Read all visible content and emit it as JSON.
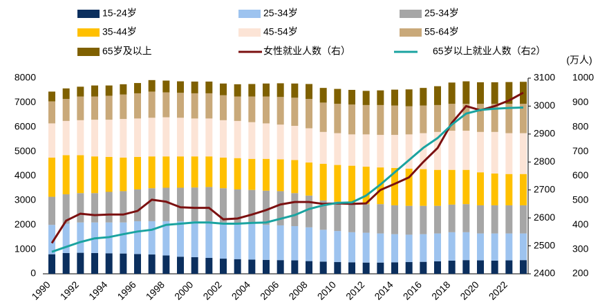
{
  "chart_data": {
    "type": "stacked-bar-line",
    "categories": [
      "1990",
      null,
      "1992",
      null,
      "1994",
      null,
      "1996",
      null,
      "1998",
      null,
      "2000",
      null,
      "2002",
      null,
      "2004",
      null,
      "2006",
      null,
      "2008",
      null,
      "2010",
      null,
      "2012",
      null,
      "2014",
      null,
      "2016",
      null,
      "2018",
      null,
      "2020",
      null,
      "2022",
      null
    ],
    "ylim": [
      0,
      8000
    ],
    "yticks": [
      0,
      1000,
      2000,
      3000,
      4000,
      5000,
      6000,
      7000,
      8000
    ],
    "y2lim": [
      2400,
      3100
    ],
    "y2ticks": [
      2400,
      2500,
      2600,
      2700,
      2800,
      2900,
      3000,
      3100
    ],
    "y3lim": [
      200,
      1000
    ],
    "y3ticks": [
      200,
      300,
      400,
      500,
      600,
      700,
      800,
      900,
      1000
    ],
    "y3label": "(万人)",
    "series": [
      {
        "name": "15-24岁",
        "color": "#0b2f5e",
        "values": [
          800,
          850,
          860,
          850,
          840,
          830,
          810,
          790,
          750,
          700,
          680,
          650,
          620,
          600,
          580,
          570,
          560,
          550,
          520,
          500,
          480,
          470,
          460,
          460,
          470,
          480,
          490,
          510,
          540,
          560,
          550,
          540,
          550,
          560
        ]
      },
      {
        "name": "25-34岁",
        "color": "#9dc3ef",
        "values": [
          1200,
          1200,
          1240,
          1250,
          1260,
          1270,
          1340,
          1360,
          1400,
          1450,
          1470,
          1500,
          1480,
          1450,
          1470,
          1430,
          1420,
          1400,
          1380,
          1300,
          1270,
          1230,
          1220,
          1190,
          1150,
          1120,
          1130,
          1140,
          1160,
          1140,
          1100,
          1110,
          1100,
          1090
        ]
      },
      {
        "name": "25-34岁",
        "color": "#a6a6a6",
        "values": [
          1150,
          1200,
          1200,
          1200,
          1250,
          1280,
          1300,
          1350,
          1370,
          1370,
          1380,
          1400,
          1400,
          1400,
          1380,
          1400,
          1400,
          1350,
          1300,
          1200,
          1200,
          1200,
          1170,
          1200,
          1180,
          1180,
          1160,
          1130,
          1130,
          1150,
          1150,
          1150,
          1150,
          1150
        ]
      },
      {
        "name": "35-44岁",
        "color": "#ffc000",
        "values": [
          1600,
          1600,
          1550,
          1500,
          1430,
          1370,
          1330,
          1300,
          1280,
          1280,
          1270,
          1250,
          1250,
          1280,
          1270,
          1300,
          1300,
          1350,
          1350,
          1500,
          1500,
          1520,
          1530,
          1500,
          1530,
          1520,
          1500,
          1470,
          1420,
          1400,
          1350,
          1300,
          1280,
          1280
        ]
      },
      {
        "name": "45-54岁",
        "color": "#fce4d6",
        "values": [
          1400,
          1400,
          1430,
          1500,
          1520,
          1580,
          1570,
          1580,
          1600,
          1580,
          1550,
          1550,
          1530,
          1520,
          1500,
          1450,
          1420,
          1400,
          1400,
          1300,
          1300,
          1280,
          1320,
          1330,
          1350,
          1400,
          1470,
          1550,
          1600,
          1600,
          1650,
          1700,
          1670,
          1670
        ]
      },
      {
        "name": "55-64岁",
        "color": "#c9a97a",
        "values": [
          900,
          900,
          970,
          950,
          980,
          1000,
          1030,
          1070,
          1020,
          1020,
          1030,
          1030,
          1020,
          1000,
          1050,
          1100,
          1130,
          1150,
          1200,
          1200,
          1200,
          1220,
          1200,
          1220,
          1200,
          1150,
          1130,
          1100,
          1100,
          1100,
          1150,
          1150,
          1200,
          1200
        ]
      },
      {
        "name": "65岁及以上",
        "color": "#7f6000",
        "values": [
          400,
          430,
          400,
          450,
          420,
          420,
          420,
          470,
          480,
          470,
          480,
          480,
          480,
          500,
          510,
          530,
          560,
          580,
          610,
          600,
          610,
          600,
          580,
          600,
          650,
          690,
          720,
          770,
          870,
          920,
          880,
          880,
          890,
          900
        ]
      },
      {
        "name": "女性就业人数（右）",
        "color": "#7b1010",
        "axis": "y2",
        "values": [
          2510,
          2590,
          2615,
          2610,
          2612,
          2612,
          2625,
          2665,
          2658,
          2638,
          2636,
          2636,
          2595,
          2598,
          2612,
          2628,
          2648,
          2657,
          2657,
          2650,
          2652,
          2650,
          2652,
          2700,
          2722,
          2745,
          2800,
          2850,
          2940,
          3000,
          2985,
          3000,
          3020,
          3048
        ]
      },
      {
        "name": "65岁以上就业人数（右2）",
        "color": "#1aa3a0",
        "axis": "y3",
        "values": [
          290,
          310,
          330,
          345,
          350,
          362,
          373,
          380,
          400,
          405,
          410,
          410,
          405,
          405,
          408,
          410,
          425,
          440,
          465,
          480,
          490,
          492,
          520,
          565,
          615,
          665,
          715,
          755,
          810,
          855,
          870,
          875,
          878,
          880
        ]
      }
    ]
  }
}
